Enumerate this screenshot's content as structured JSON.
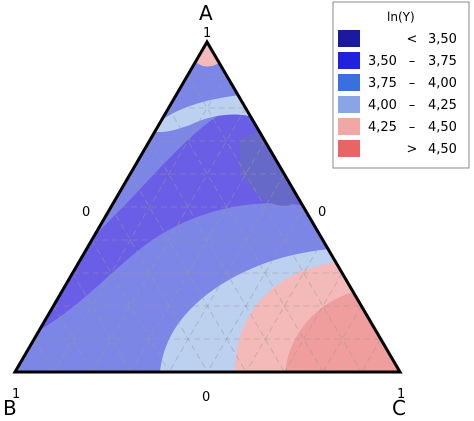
{
  "chart_data": {
    "type": "ternary-contour",
    "vertices": {
      "top": {
        "name": "A",
        "max_label": "1",
        "opposite_label": "0"
      },
      "left": {
        "name": "B",
        "max_label": "1",
        "opposite_label": "0"
      },
      "right": {
        "name": "C",
        "max_label": "1",
        "opposite_label": "0"
      }
    },
    "grid_divisions": 10,
    "legend": {
      "title": "ln(Y)",
      "placement": "top-right",
      "bands": [
        {
          "low": "",
          "sep": "<",
          "high": "3,50",
          "color": "#1a1a9e"
        },
        {
          "low": "3,50",
          "sep": "–",
          "high": "3,75",
          "color": "#2121e0"
        },
        {
          "low": "3,75",
          "sep": "–",
          "high": "4,00",
          "color": "#3a6fe0"
        },
        {
          "low": "4,00",
          "sep": "–",
          "high": "4,25",
          "color": "#8aa5e6"
        },
        {
          "low": "4,25",
          "sep": "–",
          "high": "4,50",
          "color": "#f2a7a7"
        },
        {
          "low": "",
          "sep": ">",
          "high": "4,50",
          "color": "#e86565"
        }
      ]
    },
    "display_colors": {
      "band_3_75_4_00": "#7c86e6",
      "band_4_00_4_25": "#94a8ec",
      "band_3_50_3_75": "#6a5de6",
      "band_4_25_4_50": "#f4b9b9",
      "band_gt_4_50": "#ef9d9d",
      "band_light": "#bcd0f0",
      "dark_inner": "#6669c8",
      "grid_line": "#9b9b9b"
    }
  }
}
